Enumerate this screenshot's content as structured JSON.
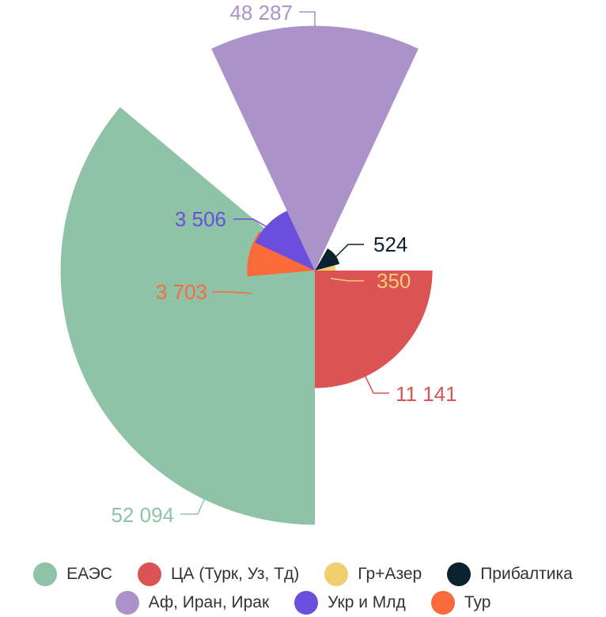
{
  "chart_data": {
    "type": "polar-area",
    "legend_position": "bottom",
    "categories": [
      "ЕАЭС",
      "ЦА (Турк, Уз, Тд)",
      "Гр+Азер",
      "Прибалтика",
      "Аф, Иран, Ирак",
      "Укр и Млд",
      "Тур"
    ],
    "values": [
      52094,
      11141,
      350,
      524,
      48287,
      3506,
      3703
    ],
    "value_labels": [
      "52 094",
      "11 141",
      "350",
      "524",
      "48 287",
      "3 506",
      "3 703"
    ],
    "colors": [
      "#8ec3a7",
      "#dc5356",
      "#f0cf6f",
      "#0b2230",
      "#ab92c9",
      "#6a4fdc",
      "#fb6a3a"
    ],
    "slices": [
      {
        "label": "ЕАЭС",
        "value": 52094,
        "start_deg": 180,
        "end_deg": 310
      },
      {
        "label": "ЦА (Турк, Уз, Тд)",
        "value": 11141,
        "start_deg": 90,
        "end_deg": 180
      },
      {
        "label": "Гр+Азер",
        "value": 350,
        "start_deg": 75,
        "end_deg": 90
      },
      {
        "label": "Прибалтика",
        "value": 524,
        "start_deg": 30,
        "end_deg": 75
      },
      {
        "label": "Аф, Иран, Ирак",
        "value": 48287,
        "start_deg": -25,
        "end_deg": 25
      },
      {
        "label": "Укр и Млд",
        "value": 3506,
        "start_deg": 295,
        "end_deg": 335
      },
      {
        "label": "Тур",
        "value": 3703,
        "start_deg": 265,
        "end_deg": 305
      }
    ]
  },
  "legend": {
    "rows": [
      [
        {
          "label": "ЕАЭС",
          "color": "#8ec3a7"
        },
        {
          "label": "ЦА (Турк, Уз, Тд)",
          "color": "#dc5356"
        },
        {
          "label": "Гр+Азер",
          "color": "#f0cf6f"
        },
        {
          "label": "Прибалтика",
          "color": "#0b2230"
        }
      ],
      [
        {
          "label": "Аф, Иран, Ирак",
          "color": "#ab92c9"
        },
        {
          "label": "Укр и Млд",
          "color": "#6a4fdc"
        },
        {
          "label": "Тур",
          "color": "#fb6a3a"
        }
      ]
    ]
  }
}
